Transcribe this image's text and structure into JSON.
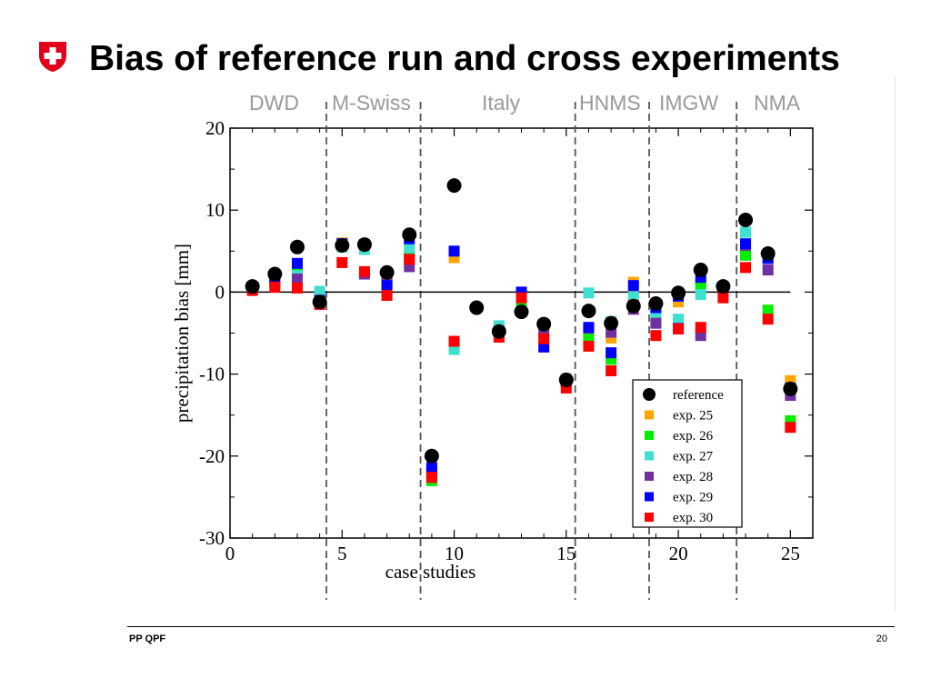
{
  "slide": {
    "title": "Bias of reference run and cross experiments",
    "logo_icon": "swiss-cross-shield-icon",
    "logo_color": "#e3001b",
    "footer_left": "PP QPF",
    "page_number": "20"
  },
  "regions": [
    {
      "label": "DWD"
    },
    {
      "label": "M-Swiss"
    },
    {
      "label": "Italy"
    },
    {
      "label": "HNMS"
    },
    {
      "label": "IMGW"
    },
    {
      "label": "NMA"
    }
  ],
  "chart_data": {
    "type": "scatter",
    "xlabel": "case studies",
    "ylabel": "precipitation bias [mm]",
    "xlim": [
      0,
      26
    ],
    "ylim": [
      -30,
      20
    ],
    "xticks": [
      0,
      5,
      10,
      15,
      20,
      25
    ],
    "yticks": [
      20,
      10,
      0,
      -10,
      -20,
      -30
    ],
    "zero_line": true,
    "grid": false,
    "legend_position": "bottom-right",
    "region_boundaries_x": [
      4.3,
      8.5,
      15.4,
      18.7,
      22.6
    ],
    "x": [
      1,
      2,
      3,
      4,
      5,
      6,
      7,
      8,
      9,
      10,
      11,
      12,
      13,
      14,
      15,
      16,
      17,
      18,
      19,
      20,
      21,
      22,
      23,
      24,
      25
    ],
    "series": [
      {
        "name": "reference",
        "marker": "circle",
        "color": "#000000",
        "values": [
          0.7,
          2.2,
          5.5,
          -1.2,
          5.7,
          5.8,
          2.4,
          7.0,
          -20.0,
          13.0,
          -1.9,
          -4.8,
          -2.4,
          -3.9,
          -10.7,
          -2.3,
          -3.8,
          -1.7,
          -1.4,
          -0.1,
          2.7,
          0.7,
          8.8,
          4.7,
          -11.8
        ]
      },
      {
        "name": "exp. 25",
        "marker": "square",
        "color": "#ffa500",
        "values": [
          0.4,
          1.2,
          2.4,
          -1.2,
          6.0,
          5.8,
          1.8,
          4.6,
          -22.0,
          4.2,
          null,
          -4.5,
          -1.5,
          -3.9,
          -10.6,
          -4.8,
          -5.6,
          1.2,
          -1.8,
          -1.2,
          1.2,
          0.3,
          5.5,
          4.3,
          -10.8
        ]
      },
      {
        "name": "exp. 26",
        "marker": "square",
        "color": "#00ee00",
        "values": [
          0.4,
          1.2,
          2.6,
          -0.8,
          5.7,
          5.5,
          1.7,
          4.4,
          -23.0,
          null,
          null,
          -4.6,
          -1.2,
          -4.1,
          -11.0,
          -5.5,
          -8.2,
          -1.2,
          -2.7,
          -3.9,
          0.9,
          0.4,
          4.5,
          -2.2,
          -15.7
        ]
      },
      {
        "name": "exp. 27",
        "marker": "square",
        "color": "#40e0d0",
        "values": [
          0.5,
          1.6,
          2.0,
          0.1,
          5.5,
          5.2,
          1.8,
          5.4,
          -22.0,
          -7.0,
          null,
          -4.1,
          -0.6,
          -4.9,
          -11.0,
          -0.1,
          -3.6,
          -0.6,
          -3.2,
          -3.3,
          -0.3,
          0.6,
          7.3,
          4.1,
          -12.0
        ]
      },
      {
        "name": "exp. 28",
        "marker": "square",
        "color": "#7030a0",
        "values": [
          0.5,
          1.4,
          1.6,
          -1.2,
          5.8,
          2.2,
          1.2,
          3.1,
          -22.0,
          null,
          null,
          -4.8,
          -0.6,
          -4.7,
          -11.0,
          -4.4,
          -4.9,
          -2.1,
          -3.8,
          -4.4,
          -5.3,
          0.5,
          5.7,
          2.7,
          -12.6
        ]
      },
      {
        "name": "exp. 29",
        "marker": "square",
        "color": "#0000ff",
        "values": [
          0.5,
          1.6,
          3.5,
          -1.0,
          5.9,
          5.8,
          0.8,
          6.5,
          -21.4,
          5.0,
          null,
          -4.9,
          0.0,
          -6.7,
          -10.8,
          -4.3,
          -7.4,
          0.8,
          -1.9,
          -0.5,
          1.8,
          0.6,
          5.9,
          4.1,
          -11.7
        ]
      },
      {
        "name": "exp. 30",
        "marker": "square",
        "color": "#ff0000",
        "values": [
          0.2,
          0.6,
          0.5,
          -1.5,
          3.6,
          2.5,
          -0.4,
          4.0,
          -22.6,
          -6.0,
          null,
          -5.5,
          -0.7,
          -5.7,
          -11.7,
          -6.6,
          -9.6,
          -1.6,
          -5.3,
          -4.5,
          -4.3,
          -0.7,
          3.0,
          -3.3,
          -16.5
        ]
      }
    ]
  }
}
